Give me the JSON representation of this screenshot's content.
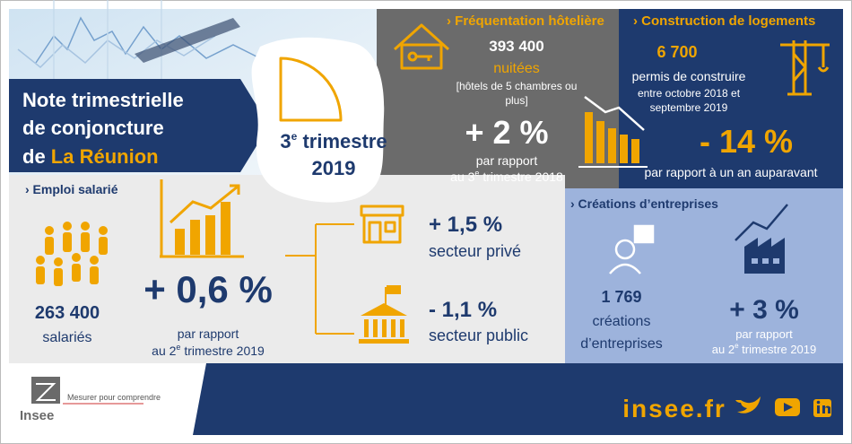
{
  "header": {
    "title_line1": "Note trimestrielle",
    "title_line2": "de conjoncture",
    "title_line3_prefix": "de ",
    "title_line3_place": "La Réunion",
    "period_number": "3",
    "period_sup": "e",
    "period_rest": " trimestre",
    "period_year": "2019"
  },
  "hotel": {
    "heading": "› Fréquentation hôtelière",
    "value": "393 400",
    "unit": "nuitées",
    "note_line1": "[hôtels de 5 chambres ou",
    "note_line2": "plus]",
    "change": "+ 2 %",
    "comparison_line1": "par rapport",
    "comparison_prefix": "au 3",
    "comparison_sup": "e",
    "comparison_suffix": " trimestre 2018"
  },
  "housing": {
    "heading": "› Construction de logements",
    "value": "6 700",
    "unit": "permis de construire",
    "period_line1": "entre octobre 2018 et",
    "period_line2": "septembre 2019",
    "change": "- 14 %",
    "comparison": "par rapport à un an auparavant"
  },
  "employment": {
    "heading": "› Emploi salarié",
    "value": "263 400",
    "unit": "salariés",
    "change": "+ 0,6 %",
    "comparison_line1": "par rapport",
    "comparison_prefix": "au 2",
    "comparison_sup": "e",
    "comparison_suffix": " trimestre 2019"
  },
  "sectors": [
    {
      "change": "+ 1,5 %",
      "label": "secteur privé"
    },
    {
      "change": "- 1,1 %",
      "label": "secteur public"
    }
  ],
  "business": {
    "heading": "› Créations d’entreprises",
    "value": "1 769",
    "unit_line1": "créations",
    "unit_line2": "d’entreprises",
    "change": "+ 3 %",
    "comparison_line1": "par rapport",
    "comparison_prefix": "au 2",
    "comparison_sup": "e",
    "comparison_suffix": " trimestre 2019"
  },
  "footer": {
    "logo": "Insee",
    "tagline": "Mesurer pour comprendre",
    "site": "insee.fr"
  }
}
